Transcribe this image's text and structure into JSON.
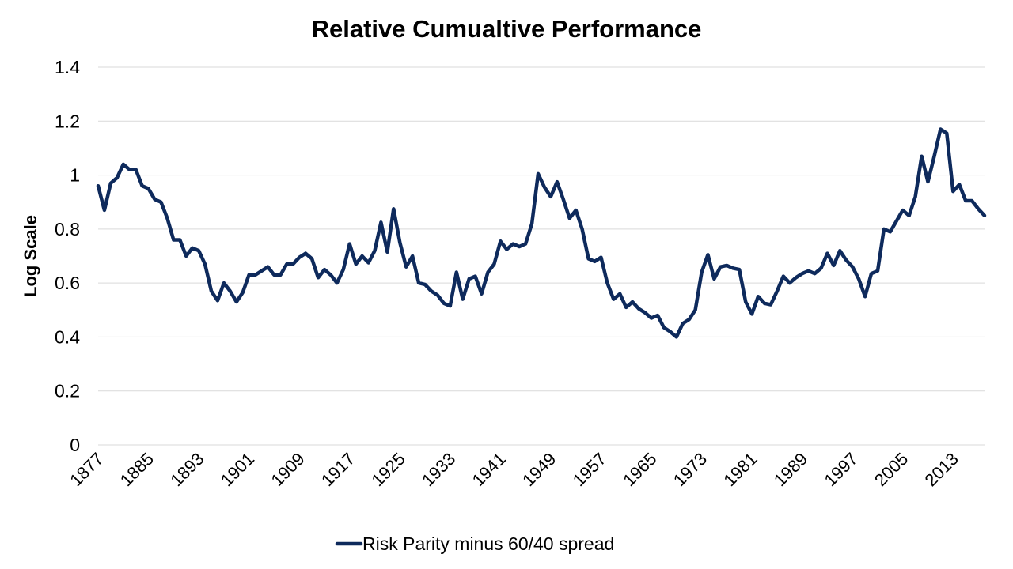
{
  "chart_data": {
    "type": "line",
    "title": "Relative Cumualtive Performance",
    "xlabel": "",
    "ylabel": "Log Scale",
    "ylim": [
      0,
      1.4
    ],
    "yticks": [
      "0",
      "0.2",
      "0.4",
      "0.6",
      "0.8",
      "1",
      "1.2",
      "1.4"
    ],
    "ytick_values": [
      0,
      0.2,
      0.4,
      0.6,
      0.8,
      1.0,
      1.2,
      1.4
    ],
    "xlim": [
      1877,
      2018
    ],
    "xticks": [
      "1877",
      "1885",
      "1893",
      "1901",
      "1909",
      "1917",
      "1925",
      "1933",
      "1941",
      "1949",
      "1957",
      "1965",
      "1973",
      "1981",
      "1989",
      "1997",
      "2005",
      "2013"
    ],
    "xtick_values": [
      1877,
      1885,
      1893,
      1901,
      1909,
      1917,
      1925,
      1933,
      1941,
      1949,
      1957,
      1965,
      1973,
      1981,
      1989,
      1997,
      2005,
      2013
    ],
    "grid": true,
    "legend_position": "bottom",
    "series": [
      {
        "name": "Risk Parity minus 60/40 spread",
        "color": "#0e2a5c",
        "x": [
          1877,
          1878,
          1879,
          1880,
          1881,
          1882,
          1883,
          1884,
          1885,
          1886,
          1887,
          1888,
          1889,
          1890,
          1891,
          1892,
          1893,
          1894,
          1895,
          1896,
          1897,
          1898,
          1899,
          1900,
          1901,
          1902,
          1903,
          1904,
          1905,
          1906,
          1907,
          1908,
          1909,
          1910,
          1911,
          1912,
          1913,
          1914,
          1915,
          1916,
          1917,
          1918,
          1919,
          1920,
          1921,
          1922,
          1923,
          1924,
          1925,
          1926,
          1927,
          1928,
          1929,
          1930,
          1931,
          1932,
          1933,
          1934,
          1935,
          1936,
          1937,
          1938,
          1939,
          1940,
          1941,
          1942,
          1943,
          1944,
          1945,
          1946,
          1947,
          1948,
          1949,
          1950,
          1951,
          1952,
          1953,
          1954,
          1955,
          1956,
          1957,
          1958,
          1959,
          1960,
          1961,
          1962,
          1963,
          1964,
          1965,
          1966,
          1967,
          1968,
          1969,
          1970,
          1971,
          1972,
          1973,
          1974,
          1975,
          1976,
          1977,
          1978,
          1979,
          1980,
          1981,
          1982,
          1983,
          1984,
          1985,
          1986,
          1987,
          1988,
          1989,
          1990,
          1991,
          1992,
          1993,
          1994,
          1995,
          1996,
          1997,
          1998,
          1999,
          2000,
          2001,
          2002,
          2003,
          2004,
          2005,
          2006,
          2007,
          2008,
          2009,
          2010,
          2011,
          2012,
          2013,
          2014,
          2015,
          2016,
          2017,
          2018
        ],
        "values": [
          0.96,
          0.87,
          0.97,
          0.99,
          1.04,
          1.02,
          1.02,
          0.96,
          0.95,
          0.91,
          0.9,
          0.84,
          0.76,
          0.76,
          0.7,
          0.73,
          0.72,
          0.67,
          0.57,
          0.535,
          0.6,
          0.57,
          0.53,
          0.565,
          0.63,
          0.63,
          0.645,
          0.66,
          0.63,
          0.63,
          0.67,
          0.67,
          0.695,
          0.71,
          0.69,
          0.62,
          0.65,
          0.63,
          0.6,
          0.65,
          0.745,
          0.67,
          0.7,
          0.675,
          0.72,
          0.825,
          0.715,
          0.875,
          0.75,
          0.66,
          0.7,
          0.6,
          0.595,
          0.57,
          0.555,
          0.525,
          0.515,
          0.64,
          0.54,
          0.615,
          0.625,
          0.56,
          0.64,
          0.67,
          0.755,
          0.725,
          0.745,
          0.735,
          0.745,
          0.82,
          1.005,
          0.955,
          0.92,
          0.975,
          0.91,
          0.84,
          0.87,
          0.8,
          0.69,
          0.68,
          0.695,
          0.6,
          0.54,
          0.56,
          0.51,
          0.53,
          0.505,
          0.49,
          0.47,
          0.48,
          0.435,
          0.42,
          0.4,
          0.45,
          0.465,
          0.5,
          0.64,
          0.705,
          0.615,
          0.66,
          0.665,
          0.655,
          0.65,
          0.53,
          0.485,
          0.55,
          0.525,
          0.52,
          0.57,
          0.625,
          0.6,
          0.62,
          0.635,
          0.645,
          0.635,
          0.655,
          0.71,
          0.665,
          0.72,
          0.685,
          0.66,
          0.615,
          0.55,
          0.635,
          0.645,
          0.8,
          0.79,
          0.83,
          0.87,
          0.85,
          0.92,
          1.07,
          0.975,
          1.07,
          1.17,
          1.155,
          0.94,
          0.965,
          0.905,
          0.905,
          0.875,
          0.85
        ]
      }
    ]
  }
}
